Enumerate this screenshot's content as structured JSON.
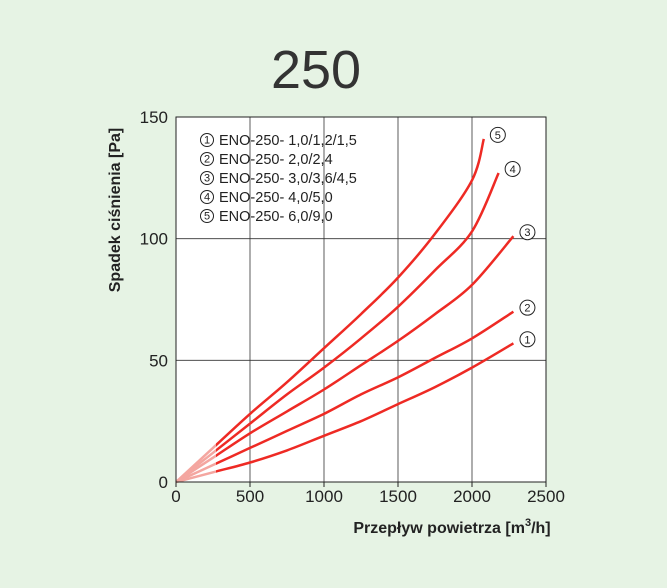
{
  "title": "250",
  "chart_data": {
    "type": "line",
    "xlabel": "Przepływ  powietrza [m",
    "xlabel_sup": "3",
    "xlabel_suffix": "/h]",
    "ylabel": "Spadek  ciśnienia [Pa]",
    "xlim": [
      0,
      2500
    ],
    "ylim": [
      0,
      150
    ],
    "x_ticks": [
      "0",
      "500",
      "1000",
      "1500",
      "2000",
      "2500"
    ],
    "y_ticks": [
      "0",
      "50",
      "100",
      "150"
    ],
    "grid": true,
    "legend_position": "top-left",
    "series": [
      {
        "name": "ENO-250- 1,0/1,2/1,5",
        "marker": "1",
        "x": [
          0,
          250,
          500,
          750,
          1000,
          1250,
          1500,
          1750,
          2000,
          2280
        ],
        "y": [
          0,
          4,
          8,
          13,
          19,
          25,
          32,
          39,
          47,
          57
        ]
      },
      {
        "name": "ENO-250- 2,0/2,4",
        "marker": "2",
        "x": [
          0,
          250,
          500,
          750,
          1000,
          1250,
          1500,
          1750,
          2000,
          2280
        ],
        "y": [
          0,
          7,
          14,
          21,
          28,
          36,
          43,
          51,
          59,
          70
        ]
      },
      {
        "name": "ENO-250- 3,0/3,6/4,5",
        "marker": "3",
        "x": [
          0,
          250,
          500,
          750,
          1000,
          1250,
          1500,
          1750,
          2000,
          2280
        ],
        "y": [
          0,
          10,
          20,
          29,
          38,
          48,
          58,
          69,
          81,
          101
        ]
      },
      {
        "name": "ENO-250- 4,0/5,0",
        "marker": "4",
        "x": [
          0,
          250,
          500,
          750,
          1000,
          1250,
          1500,
          1750,
          2000,
          2180
        ],
        "y": [
          0,
          12,
          24,
          36,
          47,
          59,
          72,
          87,
          103,
          127
        ]
      },
      {
        "name": "ENO-250- 6,0/9,0",
        "marker": "5",
        "x": [
          0,
          250,
          500,
          750,
          1000,
          1250,
          1500,
          1750,
          2000,
          2080
        ],
        "y": [
          0,
          14,
          28,
          41,
          55,
          69,
          84,
          102,
          124,
          141
        ]
      }
    ],
    "line_color": "#ee2a24",
    "faded_line_color": "#f4a6a0",
    "faded_until_x": 270
  }
}
